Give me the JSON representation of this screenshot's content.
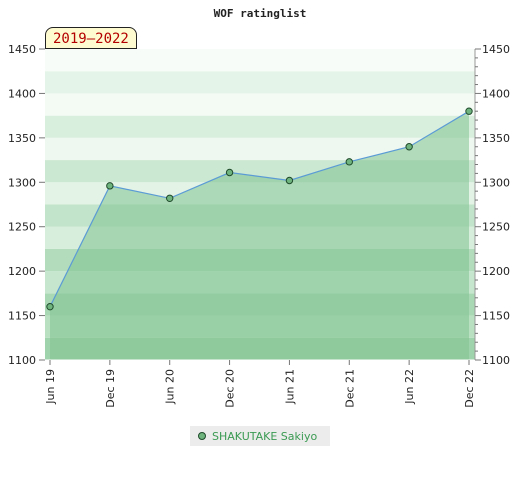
{
  "chart_data": {
    "type": "area",
    "title": "WOF ratinglist",
    "period_label": "2019–2022",
    "xlabel": "",
    "ylabel": "",
    "ylim": [
      1100,
      1450
    ],
    "yticks": [
      1100,
      1150,
      1200,
      1250,
      1300,
      1350,
      1400,
      1450
    ],
    "categories": [
      "Jun 19",
      "Dec 19",
      "Jun 20",
      "Dec 20",
      "Jun 21",
      "Dec 21",
      "Jun 22",
      "Dec 22"
    ],
    "series": [
      {
        "name": "SHAKUTAKE Sakiyo",
        "values": [
          1160,
          1296,
          1282,
          1311,
          1302,
          1323,
          1340,
          1380
        ]
      }
    ],
    "grid": true,
    "legend_position": "bottom"
  },
  "colors": {
    "area_fill": "#7fc38f",
    "line": "#5b9bd5",
    "marker_fill": "#6fb47e",
    "marker_stroke": "#1f4a2b",
    "legend_text": "#3a9a52",
    "badge_text": "#b30000",
    "badge_bg": "#fffbd0"
  }
}
